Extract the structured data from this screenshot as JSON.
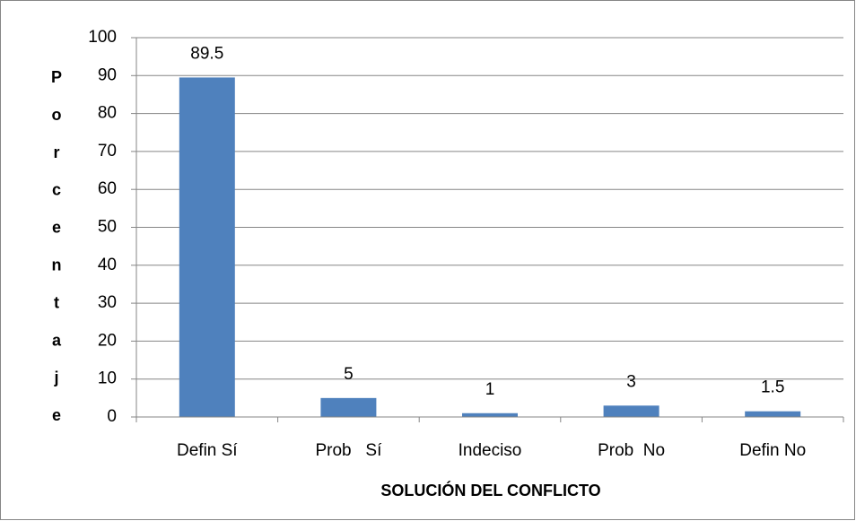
{
  "chart_data": {
    "type": "bar",
    "x_label": "SOLUCIÓN DEL CONFLICTO",
    "y_label": "Porcentaje",
    "categories": [
      "Defin Sí",
      "Prob   Sí",
      "Indeciso",
      "Prob  No",
      "Defin No"
    ],
    "values": [
      89.5,
      5,
      1,
      3,
      1.5
    ],
    "color": "#4f81bd",
    "ylim": [
      0,
      100
    ],
    "yticks": [
      0,
      10,
      20,
      30,
      40,
      50,
      60,
      70,
      80,
      90,
      100
    ],
    "grid": true
  }
}
